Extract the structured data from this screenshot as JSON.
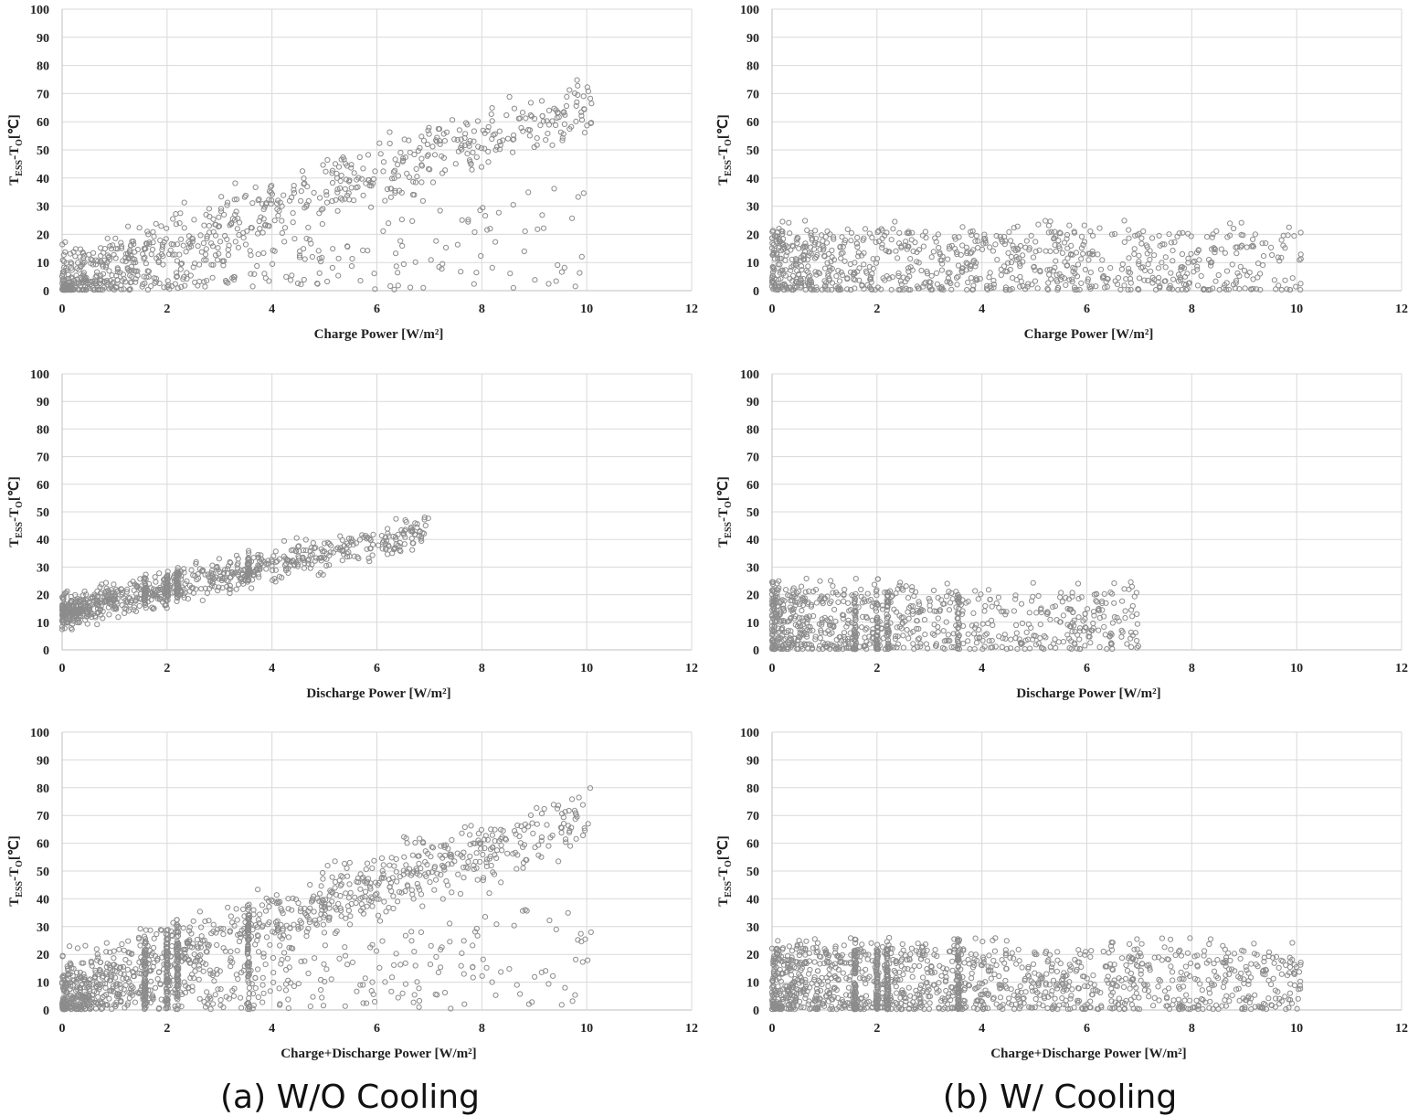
{
  "figure": {
    "captions": [
      "(a) W/O Cooling",
      "(b) W/ Cooling"
    ]
  },
  "style": {
    "marker_color": "#8c8c8c",
    "grid_color": "#d9d9d9"
  },
  "chart_data": [
    {
      "id": "a-charge",
      "type": "scatter",
      "column": "a",
      "ylabel_main": "T",
      "ylabel_sub1": "ESS",
      "ylabel_mid": "-T",
      "ylabel_sub2": "O",
      "ylabel_tail": "[℃]",
      "xlabel": "Charge Power [W/m²]",
      "xlim": [
        0,
        12
      ],
      "ylim": [
        0,
        100
      ],
      "x_ticks": [
        "0",
        "2",
        "4",
        "6",
        "8",
        "10",
        "12"
      ],
      "y_ticks": [
        "0",
        "10",
        "20",
        "30",
        "40",
        "50",
        "60",
        "70",
        "80",
        "90",
        "100"
      ],
      "gen": {
        "n": 900,
        "seed": 11,
        "xmax": 10.1,
        "xpow": 1.6,
        "kind": "rising",
        "slope": 6.3,
        "base": 3,
        "spread": 16,
        "cap": 85
      }
    },
    {
      "id": "b-charge",
      "type": "scatter",
      "column": "b",
      "ylabel_main": "T",
      "ylabel_sub1": "ESS",
      "ylabel_mid": "-T",
      "ylabel_sub2": "O",
      "ylabel_tail": "[℃]",
      "xlabel": "Charge Power [W/m²]",
      "xlim": [
        0,
        12
      ],
      "ylim": [
        0,
        100
      ],
      "x_ticks": [
        "0",
        "2",
        "4",
        "6",
        "8",
        "10",
        "12"
      ],
      "y_ticks": [
        "0",
        "10",
        "20",
        "30",
        "40",
        "50",
        "60",
        "70",
        "80",
        "90",
        "100"
      ],
      "gen": {
        "n": 900,
        "seed": 23,
        "xmax": 10.1,
        "xpow": 1.5,
        "kind": "flat",
        "cap": 25
      }
    },
    {
      "id": "a-discharge",
      "type": "scatter",
      "column": "a",
      "ylabel_main": "T",
      "ylabel_sub1": "ESS",
      "ylabel_mid": "-T",
      "ylabel_sub2": "O",
      "ylabel_tail": "[℃]",
      "xlabel": "Discharge Power [W/m²]",
      "xlim": [
        0,
        12
      ],
      "ylim": [
        0,
        100
      ],
      "x_ticks": [
        "0",
        "2",
        "4",
        "6",
        "8",
        "10",
        "12"
      ],
      "y_ticks": [
        "0",
        "10",
        "20",
        "30",
        "40",
        "50",
        "60",
        "70",
        "80",
        "90",
        "100"
      ],
      "gen": {
        "n": 900,
        "seed": 37,
        "xmax": 7.0,
        "xpow": 1.7,
        "kind": "discharge",
        "cap": 54,
        "columns": [
          1.58,
          2.0,
          2.2,
          3.55
        ]
      }
    },
    {
      "id": "b-discharge",
      "type": "scatter",
      "column": "b",
      "ylabel_main": "T",
      "ylabel_sub1": "ESS",
      "ylabel_mid": "-T",
      "ylabel_sub2": "O",
      "ylabel_tail": "[℃]",
      "xlabel": "Discharge Power [W/m²]",
      "xlim": [
        0,
        12
      ],
      "ylim": [
        0,
        100
      ],
      "x_ticks": [
        "0",
        "2",
        "4",
        "6",
        "8",
        "10",
        "12"
      ],
      "y_ticks": [
        "0",
        "10",
        "20",
        "30",
        "40",
        "50",
        "60",
        "70",
        "80",
        "90",
        "100"
      ],
      "gen": {
        "n": 900,
        "seed": 41,
        "xmax": 7.0,
        "xpow": 1.8,
        "kind": "flat",
        "cap": 26,
        "columns": [
          1.58,
          2.0,
          2.2,
          3.55
        ]
      }
    },
    {
      "id": "a-both",
      "type": "scatter",
      "column": "a",
      "ylabel_main": "T",
      "ylabel_sub1": "ESS",
      "ylabel_mid": "-T",
      "ylabel_sub2": "O",
      "ylabel_tail": "[℃]",
      "xlabel": "Charge+Discharge Power [W/m²]",
      "xlim": [
        0,
        12
      ],
      "ylim": [
        0,
        100
      ],
      "x_ticks": [
        "0",
        "2",
        "4",
        "6",
        "8",
        "10",
        "12"
      ],
      "y_ticks": [
        "0",
        "10",
        "20",
        "30",
        "40",
        "50",
        "60",
        "70",
        "80",
        "90",
        "100"
      ],
      "gen": {
        "n": 1500,
        "seed": 53,
        "xmax": 10.1,
        "xpow": 1.6,
        "kind": "rising",
        "slope": 6.3,
        "base": 6,
        "spread": 18,
        "cap": 85,
        "columns": [
          1.58,
          2.0,
          2.2,
          3.55
        ]
      }
    },
    {
      "id": "b-both",
      "type": "scatter",
      "column": "b",
      "ylabel_main": "T",
      "ylabel_sub1": "ESS",
      "ylabel_mid": "-T",
      "ylabel_sub2": "O",
      "ylabel_tail": "[℃]",
      "xlabel": "Charge+Discharge Power [W/m²]",
      "xlim": [
        0,
        12
      ],
      "ylim": [
        0,
        100
      ],
      "x_ticks": [
        "0",
        "2",
        "4",
        "6",
        "8",
        "10",
        "12"
      ],
      "y_ticks": [
        "0",
        "10",
        "20",
        "30",
        "40",
        "50",
        "60",
        "70",
        "80",
        "90",
        "100"
      ],
      "gen": {
        "n": 1500,
        "seed": 67,
        "xmax": 10.1,
        "xpow": 1.5,
        "kind": "flat",
        "cap": 26,
        "columns": [
          1.58,
          2.0,
          2.2,
          3.55
        ]
      }
    }
  ]
}
